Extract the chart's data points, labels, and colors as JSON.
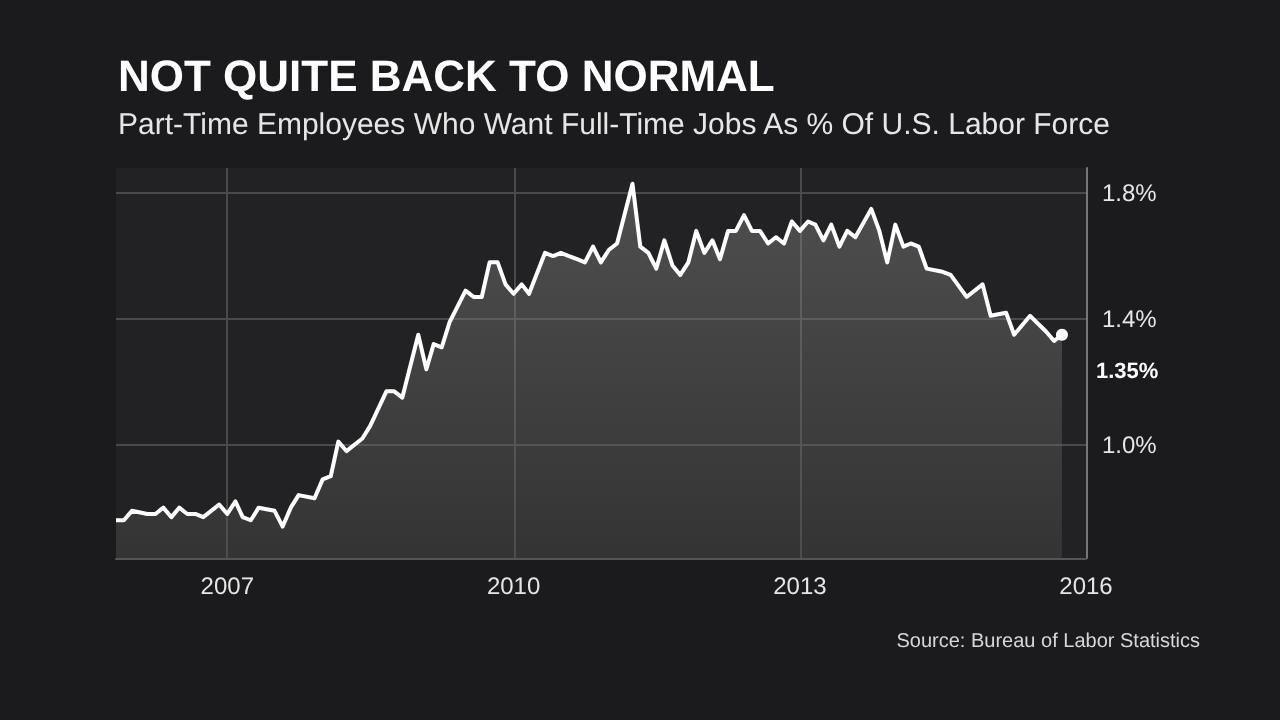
{
  "chart_data": {
    "type": "area",
    "title": "NOT QUITE BACK TO NORMAL",
    "subtitle": "Part-Time Employees Who Want Full-Time Jobs As % Of U.S. Labor Force",
    "annotations": [
      "Source: Bureau of Labor Statistics"
    ],
    "x": [
      "2005-11",
      "2005-12",
      "2006-01",
      "2006-03",
      "2006-04",
      "2006-05",
      "2006-06",
      "2006-07",
      "2006-08",
      "2006-09",
      "2006-10",
      "2006-12",
      "2007-01",
      "2007-02",
      "2007-03",
      "2007-04",
      "2007-05",
      "2007-07",
      "2007-08",
      "2007-09",
      "2007-10",
      "2007-12",
      "2008-01",
      "2008-02",
      "2008-03",
      "2008-04",
      "2008-06",
      "2008-07",
      "2008-09",
      "2008-10",
      "2008-11",
      "2009-01",
      "2009-02",
      "2009-03",
      "2009-04",
      "2009-05",
      "2009-07",
      "2009-08",
      "2009-09",
      "2009-10",
      "2009-11",
      "2009-12",
      "2010-01",
      "2010-02",
      "2010-03",
      "2010-05",
      "2010-06",
      "2010-07",
      "2010-08",
      "2010-09",
      "2010-10",
      "2010-11",
      "2010-12",
      "2011-01",
      "2011-02",
      "2011-04",
      "2011-05",
      "2011-06",
      "2011-07",
      "2011-08",
      "2011-09",
      "2011-10",
      "2011-11",
      "2011-12",
      "2012-01",
      "2012-02",
      "2012-03",
      "2012-04",
      "2012-05",
      "2012-06",
      "2012-07",
      "2012-08",
      "2012-09",
      "2012-10",
      "2012-11",
      "2012-12",
      "2013-01",
      "2013-02",
      "2013-03",
      "2013-04",
      "2013-05",
      "2013-06",
      "2013-07",
      "2013-08",
      "2013-10",
      "2013-11",
      "2013-12",
      "2014-01",
      "2014-02",
      "2014-03",
      "2014-04",
      "2014-05",
      "2014-07",
      "2014-08",
      "2014-10",
      "2014-12",
      "2015-01",
      "2015-03",
      "2015-04",
      "2015-06",
      "2015-08",
      "2015-09",
      "2015-10"
    ],
    "series": [
      {
        "color": "#ffffff",
        "values": [
          0.76,
          0.76,
          0.79,
          0.78,
          0.78,
          0.8,
          0.77,
          0.8,
          0.78,
          0.78,
          0.77,
          0.81,
          0.78,
          0.82,
          0.77,
          0.76,
          0.8,
          0.79,
          0.74,
          0.8,
          0.84,
          0.83,
          0.89,
          0.9,
          1.01,
          0.98,
          1.02,
          1.06,
          1.17,
          1.17,
          1.15,
          1.35,
          1.24,
          1.32,
          1.31,
          1.39,
          1.49,
          1.47,
          1.47,
          1.58,
          1.58,
          1.51,
          1.48,
          1.51,
          1.48,
          1.61,
          1.6,
          1.61,
          1.6,
          1.59,
          1.58,
          1.63,
          1.58,
          1.62,
          1.64,
          1.83,
          1.63,
          1.61,
          1.56,
          1.65,
          1.57,
          1.54,
          1.58,
          1.68,
          1.61,
          1.65,
          1.59,
          1.68,
          1.68,
          1.73,
          1.68,
          1.68,
          1.64,
          1.66,
          1.64,
          1.71,
          1.68,
          1.71,
          1.7,
          1.65,
          1.7,
          1.63,
          1.68,
          1.66,
          1.75,
          1.68,
          1.58,
          1.7,
          1.63,
          1.64,
          1.63,
          1.56,
          1.55,
          1.54,
          1.47,
          1.51,
          1.41,
          1.42,
          1.35,
          1.41,
          1.36,
          1.33,
          1.35
        ],
        "value_labels": [
          null,
          null,
          null,
          null,
          null,
          null,
          null,
          null,
          null,
          null,
          null,
          null,
          null,
          null,
          null,
          null,
          null,
          null,
          null,
          null,
          null,
          null,
          null,
          null,
          null,
          null,
          null,
          null,
          null,
          null,
          null,
          null,
          null,
          null,
          null,
          null,
          null,
          null,
          null,
          null,
          null,
          null,
          null,
          null,
          null,
          null,
          null,
          null,
          null,
          null,
          null,
          null,
          null,
          null,
          null,
          null,
          null,
          null,
          null,
          null,
          null,
          null,
          null,
          null,
          null,
          null,
          null,
          null,
          null,
          null,
          null,
          null,
          null,
          null,
          null,
          null,
          null,
          null,
          null,
          null,
          null,
          null,
          null,
          null,
          null,
          null,
          null,
          null,
          null,
          null,
          null,
          null,
          null,
          null,
          null,
          null,
          null,
          null,
          null,
          null,
          null,
          null,
          "1.35%"
        ]
      }
    ],
    "xlim": [
      "2005-11",
      "2016-01"
    ],
    "xticks": [
      "2007",
      "2010",
      "2013",
      "2016"
    ],
    "ylim": [
      0.64,
      1.88
    ],
    "yticks": [
      {
        "value": 1.0,
        "label": "1.0%"
      },
      {
        "value": 1.4,
        "label": "1.4%"
      },
      {
        "value": 1.8,
        "label": "1.8%"
      }
    ],
    "grid": true
  }
}
